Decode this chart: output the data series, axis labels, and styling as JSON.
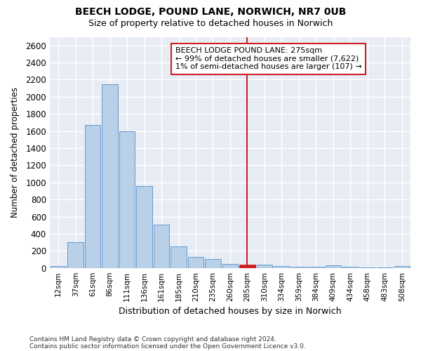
{
  "title1": "BEECH LODGE, POUND LANE, NORWICH, NR7 0UB",
  "title2": "Size of property relative to detached houses in Norwich",
  "xlabel": "Distribution of detached houses by size in Norwich",
  "ylabel": "Number of detached properties",
  "footnote1": "Contains HM Land Registry data © Crown copyright and database right 2024.",
  "footnote2": "Contains public sector information licensed under the Open Government Licence v3.0.",
  "annotation_title": "BEECH LODGE POUND LANE: 275sqm",
  "annotation_line1": "← 99% of detached houses are smaller (7,622)",
  "annotation_line2": "1% of semi-detached houses are larger (107) →",
  "bar_labels": [
    "12sqm",
    "37sqm",
    "61sqm",
    "86sqm",
    "111sqm",
    "136sqm",
    "161sqm",
    "185sqm",
    "210sqm",
    "235sqm",
    "260sqm",
    "285sqm",
    "310sqm",
    "334sqm",
    "359sqm",
    "384sqm",
    "409sqm",
    "434sqm",
    "458sqm",
    "483sqm",
    "508sqm"
  ],
  "bar_values": [
    25,
    300,
    1670,
    2150,
    1595,
    960,
    505,
    250,
    125,
    100,
    50,
    40,
    35,
    20,
    15,
    10,
    30,
    10,
    5,
    5,
    25
  ],
  "bar_color": "#b8d0e8",
  "bar_edge_color": "#6699cc",
  "highlight_bar_label": "285sqm",
  "highlight_bar_color": "#cc2222",
  "highlight_bar_edge_color": "#cc2222",
  "vline_color": "#cc2222",
  "ylim": [
    0,
    2700
  ],
  "yticks": [
    0,
    200,
    400,
    600,
    800,
    1000,
    1200,
    1400,
    1600,
    1800,
    2000,
    2200,
    2400,
    2600
  ],
  "figure_bg": "#ffffff",
  "axes_bg": "#e8edf5",
  "grid_color": "#ffffff",
  "annotation_box_edge_color": "#cc2222",
  "annotation_box_fill": "#ffffff"
}
